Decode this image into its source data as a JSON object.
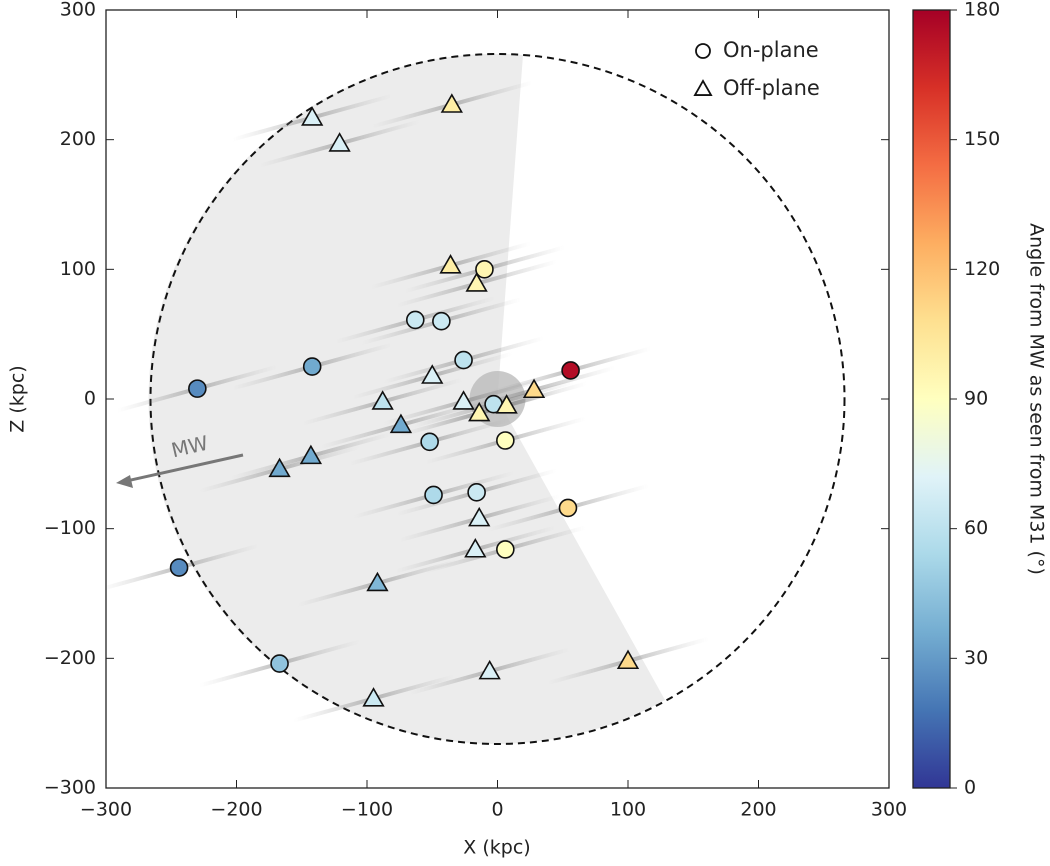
{
  "chart_data": {
    "type": "scatter",
    "xlabel": "X (kpc)",
    "ylabel": "Z (kpc)",
    "xlim": [
      -300,
      300
    ],
    "ylim": [
      -300,
      300
    ],
    "xticks": [
      {
        "value": -300,
        "label": "−300"
      },
      {
        "value": -200,
        "label": "−200"
      },
      {
        "value": -100,
        "label": "−100"
      },
      0,
      100,
      200,
      300
    ],
    "yticks": [
      {
        "value": -300,
        "label": "−300"
      },
      {
        "value": -200,
        "label": "−200"
      },
      {
        "value": -100,
        "label": "−100"
      },
      0,
      100,
      200,
      300
    ],
    "annotation": "MW",
    "legend": "upper right",
    "colorbar": {
      "label": "Angle from MW as seen from M31 (°)",
      "clim": [
        0,
        180
      ],
      "ticks": [
        0,
        30,
        60,
        90,
        120,
        150,
        180
      ],
      "colormap": [
        "#313695",
        "#4575b4",
        "#74add1",
        "#abd9e9",
        "#e0f3f8",
        "#ffffbf",
        "#fee090",
        "#fdae61",
        "#f46d43",
        "#d73027",
        "#a50026"
      ]
    },
    "series": [
      {
        "name": "On-plane",
        "marker": "circle",
        "x": [
          -10,
          -63,
          -43,
          -26,
          -142,
          -230,
          56,
          -3,
          -52,
          6,
          -16,
          -49,
          54,
          6,
          -244,
          -167
        ],
        "y": [
          100,
          61,
          60,
          30,
          25,
          8,
          22,
          -4,
          -33,
          -32,
          -72,
          -74,
          -84,
          -116,
          -130,
          -204
        ],
        "angle": [
          95,
          65,
          65,
          60,
          35,
          25,
          175,
          60,
          55,
          90,
          65,
          55,
          110,
          90,
          25,
          45
        ]
      },
      {
        "name": "Off-plane",
        "marker": "triangle",
        "x": [
          -35,
          -142,
          -121,
          -36,
          -16,
          -50,
          -88,
          -26,
          -14,
          7,
          28,
          -74,
          -143,
          -167,
          -14,
          -17,
          -92,
          -6,
          -95,
          100
        ],
        "y": [
          227,
          217,
          197,
          103,
          89,
          18,
          -2,
          -2,
          -11,
          -5,
          7,
          -20,
          -44,
          -54,
          -92,
          -116,
          -142,
          -210,
          -231,
          -202
        ],
        "angle": [
          100,
          70,
          70,
          100,
          95,
          70,
          60,
          70,
          95,
          95,
          110,
          35,
          35,
          35,
          70,
          70,
          40,
          70,
          65,
          110
        ]
      }
    ]
  }
}
